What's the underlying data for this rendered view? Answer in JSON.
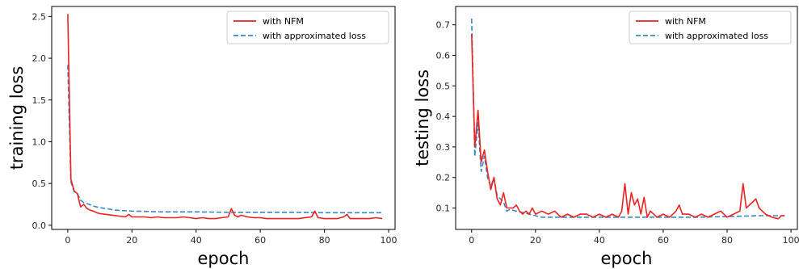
{
  "chart_data": [
    {
      "type": "line",
      "xlabel": "epoch",
      "ylabel": "training loss",
      "xlim": [
        -5,
        102
      ],
      "ylim": [
        -0.05,
        2.62
      ],
      "xticks": [
        0,
        20,
        40,
        60,
        80,
        100
      ],
      "yticks": [
        0.0,
        0.5,
        1.0,
        1.5,
        2.0,
        2.5
      ],
      "xtick_labels": [
        "0",
        "20",
        "40",
        "60",
        "80",
        "100"
      ],
      "ytick_labels": [
        "0.0",
        "0.5",
        "1.0",
        "1.5",
        "2.0",
        "2.5"
      ],
      "legend_position": "top-right",
      "series": [
        {
          "name": "with NFM",
          "color": "#ee2222",
          "style": "solid",
          "x": [
            0,
            1,
            2,
            3,
            4,
            5,
            6,
            7,
            8,
            9,
            10,
            12,
            14,
            16,
            18,
            19,
            20,
            22,
            24,
            26,
            28,
            30,
            32,
            34,
            36,
            38,
            40,
            42,
            44,
            46,
            48,
            50,
            51,
            52,
            53,
            54,
            56,
            58,
            60,
            62,
            64,
            66,
            68,
            70,
            72,
            74,
            76,
            77,
            78,
            80,
            82,
            84,
            86,
            87,
            88,
            90,
            92,
            94,
            96,
            98
          ],
          "y": [
            2.53,
            0.55,
            0.41,
            0.38,
            0.22,
            0.25,
            0.2,
            0.18,
            0.17,
            0.15,
            0.14,
            0.13,
            0.12,
            0.11,
            0.1,
            0.13,
            0.1,
            0.1,
            0.1,
            0.09,
            0.1,
            0.09,
            0.09,
            0.09,
            0.1,
            0.09,
            0.08,
            0.09,
            0.08,
            0.08,
            0.09,
            0.1,
            0.2,
            0.12,
            0.1,
            0.12,
            0.1,
            0.09,
            0.09,
            0.08,
            0.08,
            0.08,
            0.08,
            0.08,
            0.08,
            0.09,
            0.1,
            0.17,
            0.09,
            0.08,
            0.08,
            0.08,
            0.1,
            0.13,
            0.08,
            0.08,
            0.08,
            0.08,
            0.09,
            0.08
          ]
        },
        {
          "name": "with approximated loss",
          "color": "#3a87c6",
          "style": "dashed",
          "x": [
            0,
            1,
            2,
            3,
            4,
            5,
            6,
            8,
            10,
            12,
            15,
            20,
            25,
            30,
            40,
            50,
            60,
            70,
            80,
            90,
            98
          ],
          "y": [
            1.92,
            0.52,
            0.4,
            0.38,
            0.3,
            0.27,
            0.26,
            0.23,
            0.21,
            0.2,
            0.18,
            0.17,
            0.165,
            0.16,
            0.16,
            0.155,
            0.155,
            0.155,
            0.15,
            0.15,
            0.15
          ]
        }
      ]
    },
    {
      "type": "line",
      "xlabel": "epoch",
      "ylabel": "testing loss",
      "xlim": [
        -5,
        102
      ],
      "ylim": [
        0.03,
        0.76
      ],
      "xticks": [
        0,
        20,
        40,
        60,
        80,
        100
      ],
      "yticks": [
        0.1,
        0.2,
        0.3,
        0.4,
        0.5,
        0.6,
        0.7
      ],
      "xtick_labels": [
        "0",
        "20",
        "40",
        "60",
        "80",
        "100"
      ],
      "ytick_labels": [
        "0.1",
        "0.2",
        "0.3",
        "0.4",
        "0.5",
        "0.6",
        "0.7"
      ],
      "legend_position": "top-right",
      "series": [
        {
          "name": "with NFM",
          "color": "#ee2222",
          "style": "solid",
          "x": [
            0,
            1,
            2,
            3,
            4,
            5,
            6,
            7,
            8,
            9,
            10,
            11,
            12,
            13,
            14,
            15,
            16,
            17,
            18,
            19,
            20,
            22,
            24,
            26,
            28,
            30,
            32,
            34,
            36,
            38,
            40,
            42,
            44,
            46,
            47,
            48,
            49,
            50,
            51,
            52,
            53,
            54,
            55,
            56,
            57,
            58,
            60,
            62,
            64,
            65,
            66,
            68,
            70,
            72,
            74,
            76,
            78,
            80,
            82,
            84,
            85,
            86,
            88,
            89,
            90,
            92,
            94,
            96,
            97,
            98
          ],
          "y": [
            0.67,
            0.3,
            0.42,
            0.25,
            0.29,
            0.22,
            0.16,
            0.2,
            0.13,
            0.11,
            0.15,
            0.1,
            0.1,
            0.1,
            0.11,
            0.09,
            0.08,
            0.09,
            0.08,
            0.1,
            0.08,
            0.09,
            0.08,
            0.09,
            0.07,
            0.08,
            0.07,
            0.08,
            0.08,
            0.07,
            0.08,
            0.07,
            0.08,
            0.07,
            0.09,
            0.18,
            0.08,
            0.15,
            0.11,
            0.13,
            0.08,
            0.135,
            0.07,
            0.09,
            0.08,
            0.07,
            0.08,
            0.07,
            0.09,
            0.11,
            0.08,
            0.08,
            0.07,
            0.08,
            0.07,
            0.08,
            0.09,
            0.07,
            0.08,
            0.09,
            0.18,
            0.1,
            0.12,
            0.13,
            0.1,
            0.08,
            0.07,
            0.065,
            0.075,
            0.075
          ]
        },
        {
          "name": "with approximated loss",
          "color": "#3a87c6",
          "style": "dashed",
          "x": [
            0,
            1,
            2,
            3,
            4,
            5,
            6,
            7,
            8,
            9,
            10,
            11,
            12,
            14,
            16,
            18,
            20,
            22,
            25,
            30,
            40,
            50,
            60,
            70,
            80,
            90,
            98
          ],
          "y": [
            0.72,
            0.27,
            0.38,
            0.22,
            0.27,
            0.2,
            0.17,
            0.2,
            0.14,
            0.13,
            0.12,
            0.09,
            0.095,
            0.09,
            0.085,
            0.08,
            0.075,
            0.07,
            0.07,
            0.07,
            0.07,
            0.07,
            0.07,
            0.07,
            0.072,
            0.075,
            0.075
          ]
        }
      ]
    }
  ]
}
